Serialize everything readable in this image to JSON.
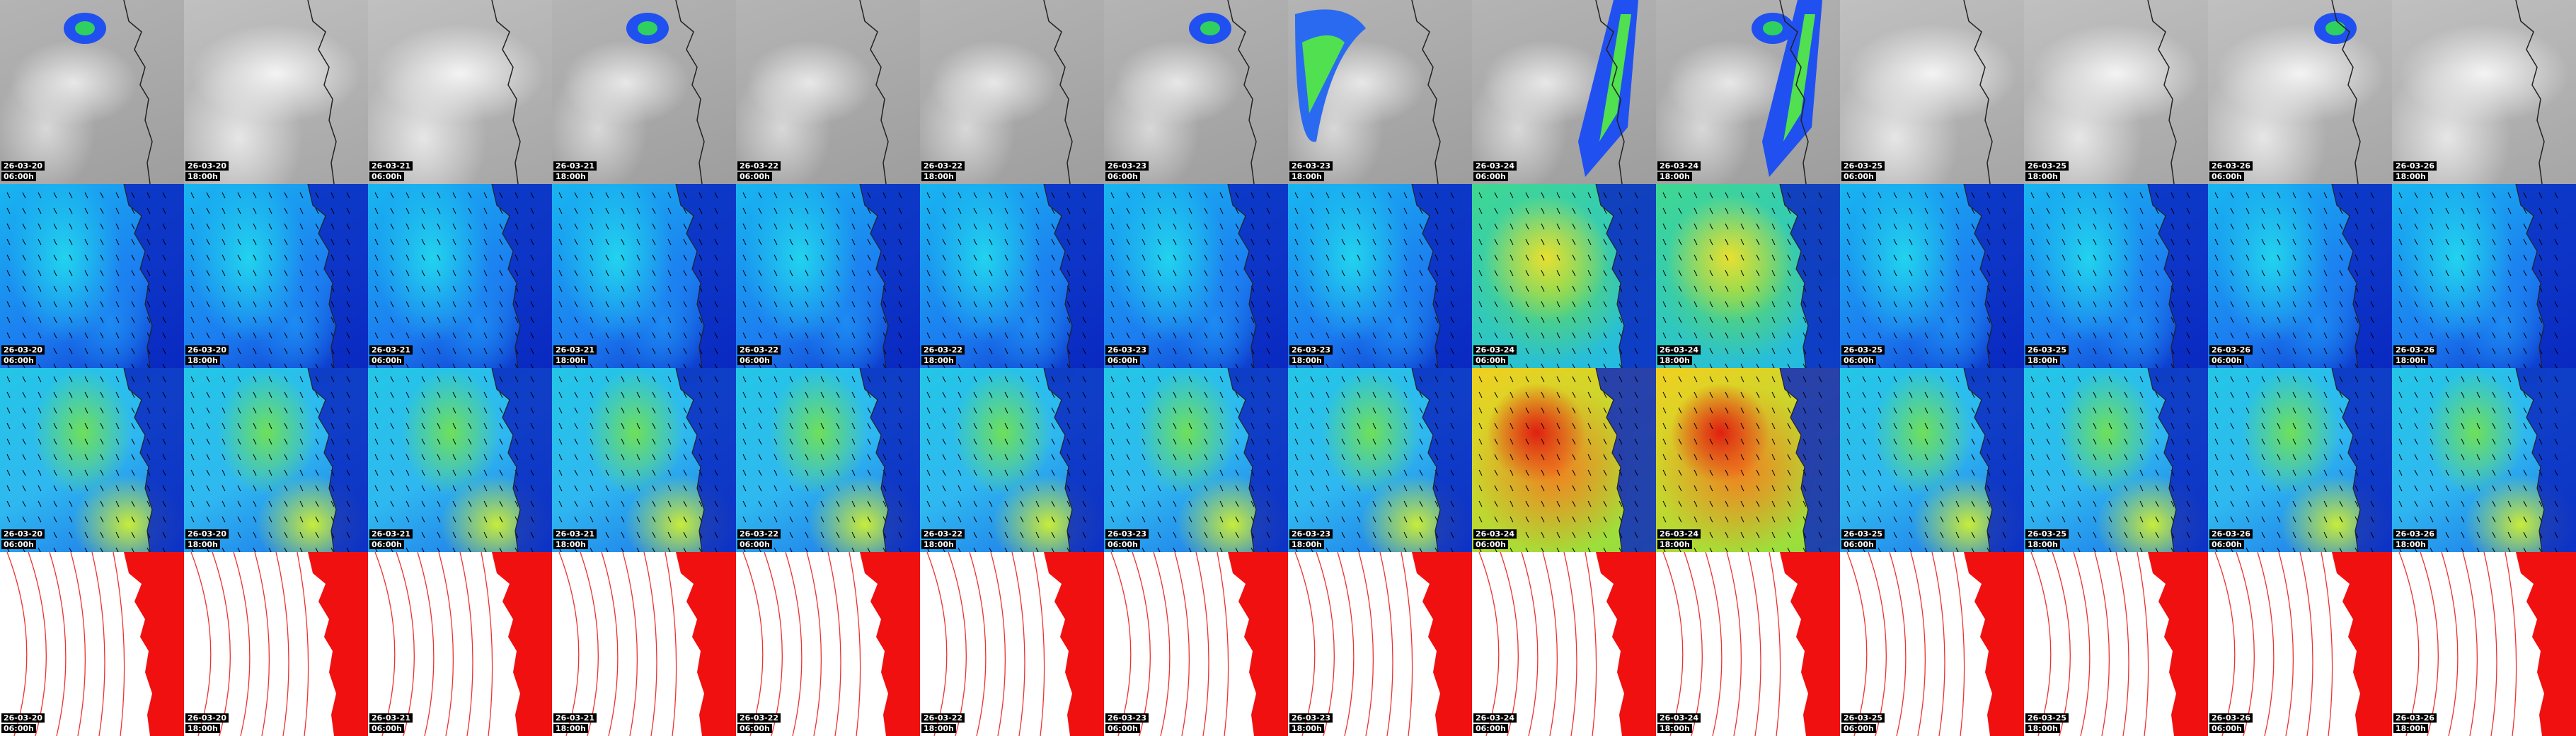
{
  "tiles": [
    {
      "date": "26-03-20",
      "time": "06:00h"
    },
    {
      "date": "26-03-20",
      "time": "18:00h"
    },
    {
      "date": "26-03-21",
      "time": "06:00h"
    },
    {
      "date": "26-03-21",
      "time": "18:00h"
    },
    {
      "date": "26-03-22",
      "time": "06:00h"
    },
    {
      "date": "26-03-22",
      "time": "18:00h"
    },
    {
      "date": "26-03-23",
      "time": "06:00h"
    },
    {
      "date": "26-03-23",
      "time": "18:00h"
    },
    {
      "date": "26-03-24",
      "time": "06:00h"
    },
    {
      "date": "26-03-24",
      "time": "18:00h"
    },
    {
      "date": "26-03-25",
      "time": "06:00h"
    },
    {
      "date": "26-03-25",
      "time": "18:00h"
    },
    {
      "date": "26-03-26",
      "time": "06:00h"
    },
    {
      "date": "26-03-26",
      "time": "18:00h"
    }
  ]
}
